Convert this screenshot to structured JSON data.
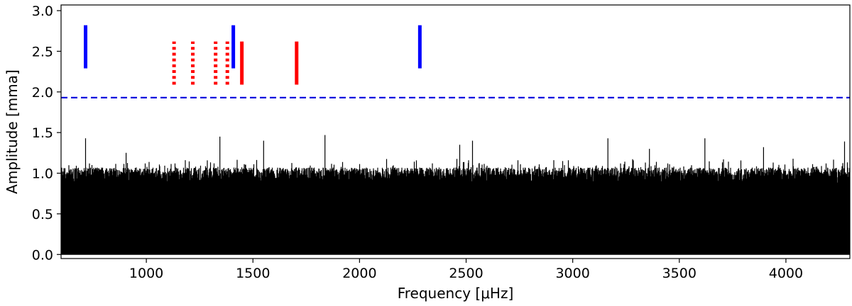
{
  "chart_data": {
    "type": "line",
    "title": "",
    "xlabel": "Frequency [μHz]",
    "ylabel": "Amplitude [mma]",
    "xlim": [
      600,
      4300
    ],
    "ylim": [
      -0.05,
      3.07
    ],
    "xticks": [
      1000,
      1500,
      2000,
      2500,
      3000,
      3500,
      4000
    ],
    "yticks": [
      0.0,
      0.5,
      1.0,
      1.5,
      2.0,
      2.5,
      3.0
    ],
    "xtick_labels": [
      "1000",
      "1500",
      "2000",
      "2500",
      "3000",
      "3500",
      "4000"
    ],
    "ytick_labels": [
      "0.0",
      "0.5",
      "1.0",
      "1.5",
      "2.0",
      "2.5",
      "3.0"
    ],
    "grid": false,
    "legend": "none",
    "series": [
      {
        "style": "noise-spectrum",
        "color": "#000000",
        "description_range": [
          0.0,
          1.47
        ],
        "x_range": [
          600,
          4300
        ]
      }
    ],
    "threshold": {
      "value": 1.93,
      "color": "#0000dd",
      "style": "dashed"
    },
    "markers": [
      {
        "x": 715,
        "y0": 2.29,
        "y1": 2.82,
        "color": "#0000ff",
        "style": "solid"
      },
      {
        "x": 1408,
        "y0": 2.29,
        "y1": 2.82,
        "color": "#0000ff",
        "style": "solid"
      },
      {
        "x": 2283,
        "y0": 2.29,
        "y1": 2.82,
        "color": "#0000ff",
        "style": "solid"
      },
      {
        "x": 1448,
        "y0": 2.09,
        "y1": 2.62,
        "color": "#ff0000",
        "style": "solid"
      },
      {
        "x": 1705,
        "y0": 2.09,
        "y1": 2.62,
        "color": "#ff0000",
        "style": "solid"
      },
      {
        "x": 1130,
        "y0": 2.09,
        "y1": 2.62,
        "color": "#ff0000",
        "style": "dotted"
      },
      {
        "x": 1218,
        "y0": 2.09,
        "y1": 2.62,
        "color": "#ff0000",
        "style": "dotted"
      },
      {
        "x": 1325,
        "y0": 2.09,
        "y1": 2.62,
        "color": "#ff0000",
        "style": "dotted"
      },
      {
        "x": 1380,
        "y0": 2.09,
        "y1": 2.62,
        "color": "#ff0000",
        "style": "dotted"
      }
    ],
    "peaks": [
      {
        "x": 715,
        "y": 1.43
      },
      {
        "x": 1345,
        "y": 1.45
      },
      {
        "x": 1838,
        "y": 1.47
      },
      {
        "x": 1550,
        "y": 1.4
      },
      {
        "x": 2530,
        "y": 1.4
      },
      {
        "x": 3165,
        "y": 1.43
      },
      {
        "x": 3620,
        "y": 1.43
      },
      {
        "x": 4275,
        "y": 1.39
      },
      {
        "x": 905,
        "y": 1.25
      },
      {
        "x": 2470,
        "y": 1.35
      },
      {
        "x": 3360,
        "y": 1.3
      },
      {
        "x": 3895,
        "y": 1.32
      }
    ]
  }
}
